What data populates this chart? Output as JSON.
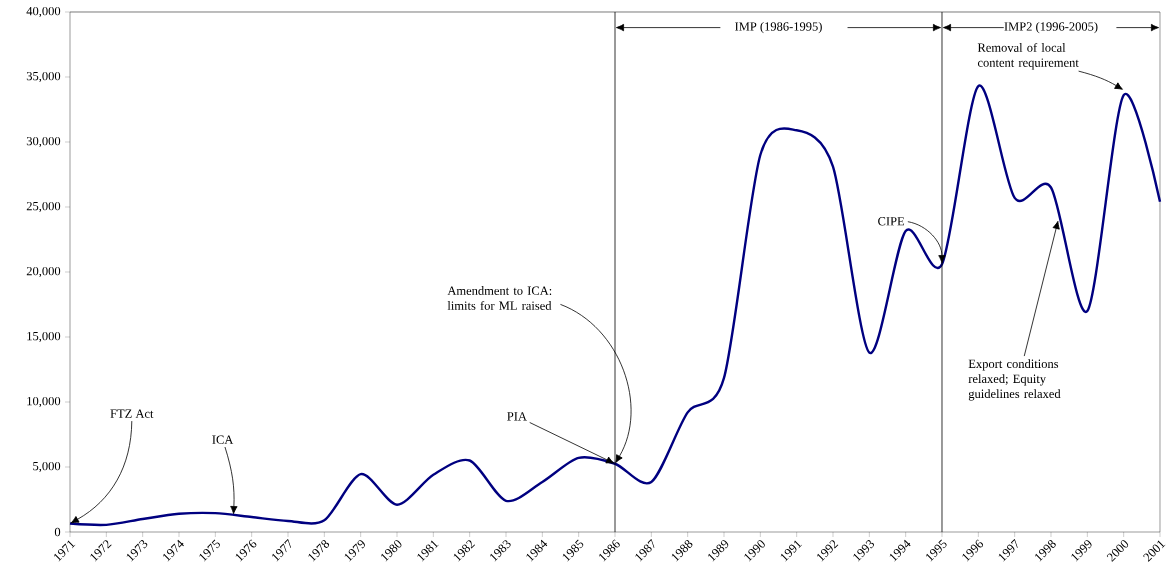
{
  "chart_data": {
    "type": "line",
    "x": [
      1971,
      1972,
      1973,
      1974,
      1975,
      1976,
      1977,
      1978,
      1979,
      1980,
      1981,
      1982,
      1983,
      1984,
      1985,
      1986,
      1987,
      1988,
      1989,
      1990,
      1991,
      1992,
      1993,
      1994,
      1995,
      1996,
      1997,
      1998,
      1999,
      2000,
      2001
    ],
    "series": [
      {
        "color": "#000080",
        "values": [
          650,
          550,
          1000,
          1400,
          1450,
          1150,
          850,
          900,
          4450,
          2100,
          4400,
          5500,
          2400,
          3850,
          5700,
          5250,
          3850,
          9200,
          11850,
          29000,
          30900,
          28100,
          13800,
          23150,
          20600,
          34300,
          25700,
          26500,
          17000,
          33600,
          25400
        ]
      }
    ],
    "xlim": [
      1971,
      2001
    ],
    "xticks": [
      1971,
      1972,
      1973,
      1974,
      1975,
      1976,
      1977,
      1978,
      1979,
      1980,
      1981,
      1982,
      1983,
      1984,
      1985,
      1986,
      1987,
      1988,
      1989,
      1990,
      1991,
      1992,
      1993,
      1994,
      1995,
      1996,
      1997,
      1998,
      1999,
      2000,
      2001
    ],
    "ylim": [
      0,
      40000
    ],
    "yticks": [
      {
        "value": 0,
        "label": "0"
      },
      {
        "value": 5000,
        "label": "5,000"
      },
      {
        "value": 10000,
        "label": "10,000"
      },
      {
        "value": 15000,
        "label": "15,000"
      },
      {
        "value": 20000,
        "label": "20,000"
      },
      {
        "value": 25000,
        "label": "25,000"
      },
      {
        "value": 30000,
        "label": "30,000"
      },
      {
        "value": 35000,
        "label": "35,000"
      },
      {
        "value": 40000,
        "label": "40,000"
      }
    ],
    "ref_lines": [
      {
        "axis": "x",
        "value": 1986
      },
      {
        "axis": "x",
        "value": 1995
      }
    ],
    "annotations": [
      {
        "text": "IMP (1986-1995)",
        "x": 1986,
        "y": 38800
      },
      {
        "text": "IMP2 (1996-2005)",
        "x": 1995,
        "y": 38800
      },
      {
        "text": "FTZ Act",
        "x": 1971,
        "y": 650
      },
      {
        "text": "ICA",
        "x": 1975.5,
        "y": 1300
      },
      {
        "text": "PIA",
        "x": 1986,
        "y": 5250
      },
      {
        "text": "Amendment to ICA: limits for ML raised",
        "x": 1986,
        "y": 5250
      },
      {
        "text": "CIPE",
        "x": 1995,
        "y": 20600
      },
      {
        "text": "Export conditions relaxed; Equity guidelines relaxed",
        "x": 1998.2,
        "y": 24000
      },
      {
        "text": "Removal of local content requirement",
        "x": 2000,
        "y": 34000
      }
    ],
    "grid": false,
    "marker": "none",
    "line_style": "solid"
  }
}
